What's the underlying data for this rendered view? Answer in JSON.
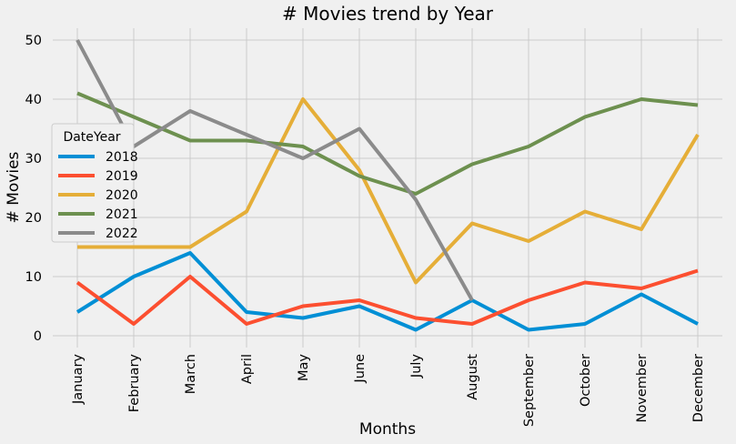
{
  "chart_data": {
    "type": "line",
    "title": "# Movies trend by Year",
    "xlabel": "Months",
    "ylabel": "# Movies",
    "categories": [
      "January",
      "February",
      "March",
      "April",
      "May",
      "June",
      "July",
      "August",
      "September",
      "October",
      "November",
      "December"
    ],
    "y_ticks": [
      0,
      10,
      20,
      30,
      40,
      50
    ],
    "ylim": [
      -2,
      52
    ],
    "grid": true,
    "legend": {
      "title": "DateYear",
      "placement": "center-left"
    },
    "series": [
      {
        "name": "2018",
        "color": "#008fd5",
        "values": [
          4,
          10,
          14,
          4,
          3,
          5,
          1,
          6,
          1,
          2,
          7,
          2
        ]
      },
      {
        "name": "2019",
        "color": "#fc4f30",
        "values": [
          9,
          2,
          10,
          2,
          5,
          6,
          3,
          2,
          6,
          9,
          8,
          11
        ]
      },
      {
        "name": "2020",
        "color": "#e5ae38",
        "values": [
          15,
          15,
          15,
          21,
          40,
          28,
          9,
          19,
          16,
          21,
          18,
          34
        ]
      },
      {
        "name": "2021",
        "color": "#6d904f",
        "values": [
          41,
          37,
          33,
          33,
          32,
          27,
          24,
          29,
          32,
          37,
          40,
          39
        ]
      },
      {
        "name": "2022",
        "color": "#8b8b8b",
        "values": [
          50,
          32,
          38,
          34,
          30,
          35,
          23,
          6,
          null,
          null,
          null,
          null
        ]
      }
    ]
  }
}
